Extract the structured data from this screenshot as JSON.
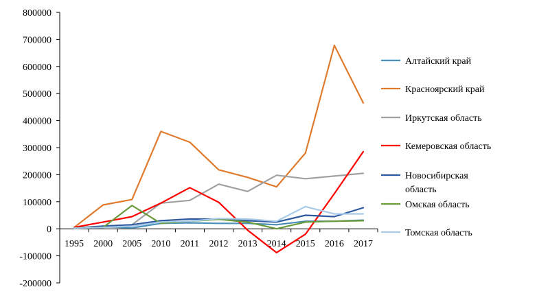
{
  "chart_data": {
    "type": "line",
    "categories": [
      "1995",
      "2000",
      "2005",
      "2010",
      "2011",
      "2012",
      "2013",
      "2014",
      "2015",
      "2016",
      "2017"
    ],
    "ylim": [
      -200000,
      800000
    ],
    "yticks": [
      -200000,
      -100000,
      0,
      100000,
      200000,
      300000,
      400000,
      500000,
      600000,
      700000,
      800000
    ],
    "ytick_labels": [
      "-200000",
      "-100000",
      "0",
      "100000",
      "200000",
      "300000",
      "400000",
      "500000",
      "600000",
      "700000",
      "800000"
    ],
    "grid": false,
    "legend": "right",
    "series": [
      {
        "name": "Алтайский край",
        "color": "#4a90b8",
        "values": [
          2000,
          8000,
          3000,
          20000,
          22000,
          20000,
          20000,
          15000,
          28000,
          28000,
          32000
        ]
      },
      {
        "name": "Красноярский край",
        "color": "#e07b2e",
        "values": [
          5000,
          88000,
          108000,
          360000,
          320000,
          218000,
          190000,
          155000,
          280000,
          678000,
          465000
        ]
      },
      {
        "name": "Иркутская область",
        "color": "#a0a0a0",
        "values": [
          3000,
          10000,
          15000,
          95000,
          105000,
          165000,
          138000,
          198000,
          185000,
          195000,
          205000
        ]
      },
      {
        "name": "Кемеровская область",
        "color": "#ff0000",
        "values": [
          5000,
          25000,
          45000,
          95000,
          152000,
          98000,
          -5000,
          -88000,
          -20000,
          130000,
          285000
        ]
      },
      {
        "name": "Новосибирская\nобласть",
        "color": "#2e58a0",
        "values": [
          2000,
          10000,
          15000,
          30000,
          36000,
          36000,
          30000,
          25000,
          50000,
          45000,
          78000
        ]
      },
      {
        "name": "Омская область",
        "color": "#6a9a3a",
        "values": [
          3000,
          5000,
          86000,
          20000,
          28000,
          35000,
          25000,
          0,
          25000,
          28000,
          30000
        ]
      },
      {
        "name": "Томская область",
        "color": "#a9cbe8",
        "values": [
          2000,
          5000,
          10000,
          25000,
          28000,
          38000,
          36000,
          28000,
          82000,
          55000,
          55000
        ]
      }
    ]
  }
}
